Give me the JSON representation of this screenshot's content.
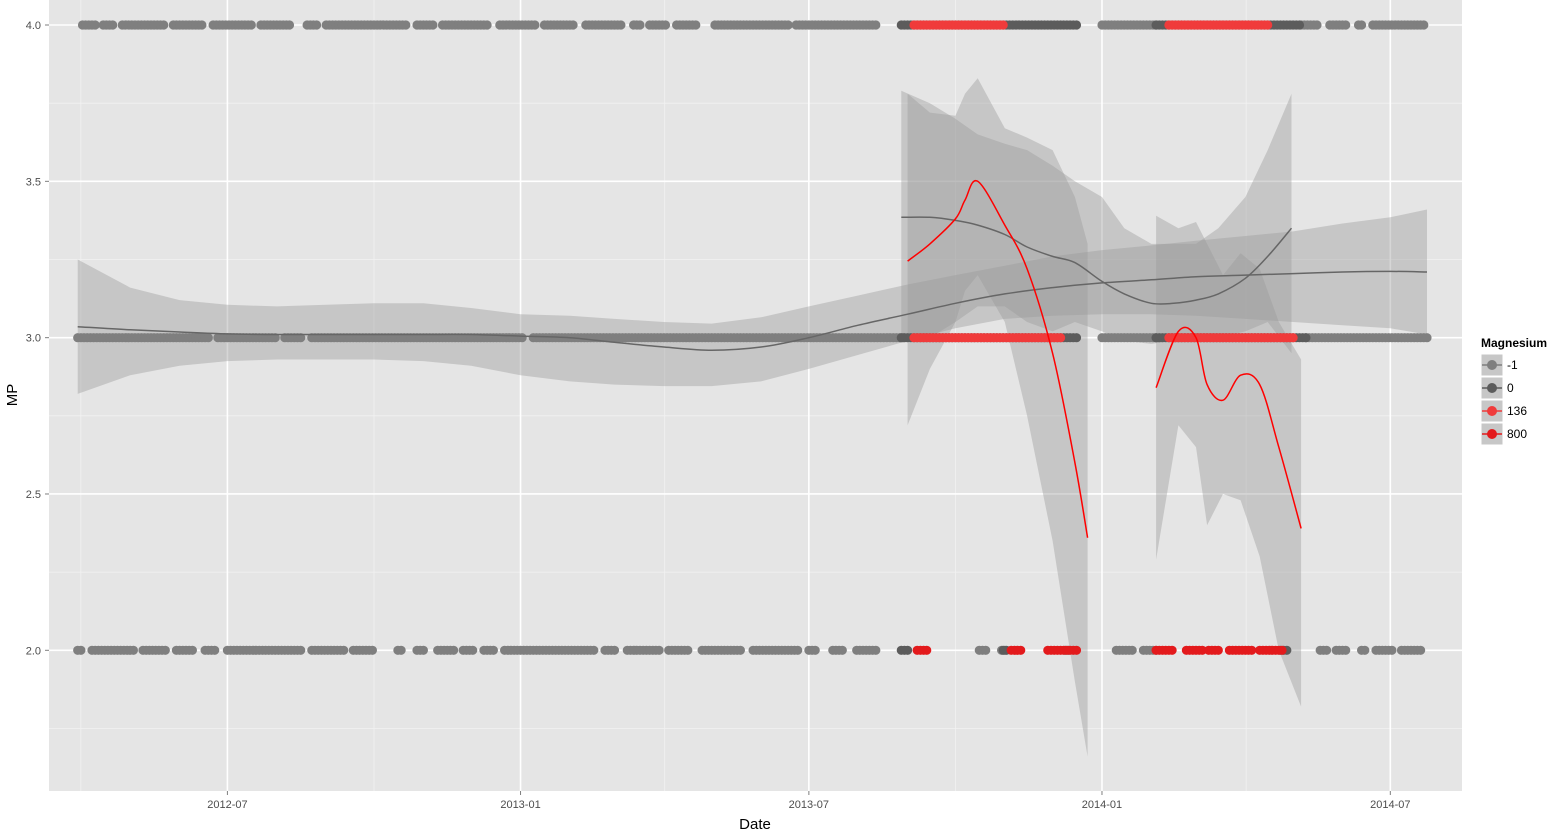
{
  "chart_data": {
    "type": "scatter",
    "title": "",
    "xlabel": "Date",
    "ylabel": "MP",
    "xlim": [
      "2012-03-11",
      "2014-08-15"
    ],
    "ylim": [
      1.55,
      4.08
    ],
    "x_ticks": [
      "2012-07-01",
      "2013-01-01",
      "2013-07-01",
      "2014-01-01",
      "2014-07-01"
    ],
    "x_tick_labels": [
      "2012-07",
      "2013-01",
      "2013-07",
      "2014-01",
      "2014-07"
    ],
    "y_ticks": [
      2.0,
      2.5,
      3.0,
      3.5,
      4.0
    ],
    "y_tick_labels": [
      "2.0",
      "2.5",
      "3.0",
      "3.5",
      "4.0"
    ],
    "grid": true,
    "legend": {
      "title": "Magnesium",
      "placement": "right",
      "entries": [
        {
          "label": "-1",
          "color": "#7f7f7f"
        },
        {
          "label": "0",
          "color": "#5c5c5c"
        },
        {
          "label": "136",
          "color": "#f03b3b"
        },
        {
          "label": "800",
          "color": "#e31a1c"
        }
      ]
    },
    "colors": {
      "panel": "#e5e5e5",
      "grid_major": "#ffffff",
      "grid_minor": "#f2f2f2",
      "band": "#999999"
    },
    "series": [
      {
        "name": "-1",
        "color": "#7f7f7f",
        "point_segments": [
          {
            "y": 4.0,
            "x": [
              [
                "2012-04-01",
                "2012-04-09"
              ],
              [
                "2012-04-14",
                "2012-04-20"
              ],
              [
                "2012-04-26",
                "2012-05-22"
              ],
              [
                "2012-05-28",
                "2012-06-16"
              ],
              [
                "2012-06-22",
                "2012-07-16"
              ],
              [
                "2012-07-22",
                "2012-08-10"
              ],
              [
                "2012-08-20",
                "2012-08-27"
              ],
              [
                "2012-09-01",
                "2012-10-22"
              ],
              [
                "2012-10-28",
                "2012-11-08"
              ],
              [
                "2012-11-13",
                "2012-12-12"
              ],
              [
                "2012-12-19",
                "2013-01-10"
              ],
              [
                "2013-01-16",
                "2013-02-04"
              ],
              [
                "2013-02-11",
                "2013-03-06"
              ],
              [
                "2013-03-13",
                "2013-03-17"
              ],
              [
                "2013-03-23",
                "2013-04-02"
              ],
              [
                "2013-04-09",
                "2013-04-22"
              ],
              [
                "2013-05-03",
                "2013-06-18"
              ],
              [
                "2013-06-23",
                "2013-08-12"
              ],
              [
                "2014-01-01",
                "2014-02-04"
              ],
              [
                "2014-05-06",
                "2014-05-16"
              ],
              [
                "2014-05-24",
                "2014-06-04"
              ],
              [
                "2014-06-11",
                "2014-06-14"
              ],
              [
                "2014-06-20",
                "2014-07-23"
              ]
            ]
          },
          {
            "y": 3.0,
            "x": [
              [
                "2012-03-29",
                "2012-06-19"
              ],
              [
                "2012-06-25",
                "2012-07-31"
              ],
              [
                "2012-08-06",
                "2012-08-16"
              ],
              [
                "2012-08-23",
                "2013-01-03"
              ],
              [
                "2013-01-09",
                "2013-08-30"
              ],
              [
                "2014-01-01",
                "2014-02-04"
              ],
              [
                "2014-05-09",
                "2014-07-24"
              ]
            ]
          },
          {
            "y": 2.0,
            "x": [
              [
                "2012-03-29",
                "2012-04-01"
              ],
              [
                "2012-04-07",
                "2012-05-03"
              ],
              [
                "2012-05-09",
                "2012-05-24"
              ],
              [
                "2012-05-30",
                "2012-06-10"
              ],
              [
                "2012-06-17",
                "2012-06-24"
              ],
              [
                "2012-07-01",
                "2012-08-16"
              ],
              [
                "2012-08-23",
                "2012-09-12"
              ],
              [
                "2012-09-18",
                "2012-10-01"
              ],
              [
                "2012-10-16",
                "2012-10-19"
              ],
              [
                "2012-10-28",
                "2012-11-01"
              ],
              [
                "2012-11-10",
                "2012-11-20"
              ],
              [
                "2012-11-26",
                "2012-12-03"
              ],
              [
                "2012-12-09",
                "2012-12-15"
              ],
              [
                "2012-12-22",
                "2013-02-16"
              ],
              [
                "2013-02-23",
                "2013-03-01"
              ],
              [
                "2013-03-09",
                "2013-03-29"
              ],
              [
                "2013-04-04",
                "2013-04-16"
              ],
              [
                "2013-04-25",
                "2013-05-20"
              ],
              [
                "2013-05-27",
                "2013-06-24"
              ],
              [
                "2013-07-01",
                "2013-07-05"
              ],
              [
                "2013-07-16",
                "2013-07-23"
              ],
              [
                "2013-07-31",
                "2013-08-12"
              ],
              [
                "2013-10-16",
                "2013-10-20"
              ],
              [
                "2013-10-30",
                "2013-11-01"
              ],
              [
                "2014-01-10",
                "2014-01-20"
              ],
              [
                "2014-01-27",
                "2014-02-04"
              ],
              [
                "2014-05-18",
                "2014-05-22"
              ],
              [
                "2014-05-28",
                "2014-06-04"
              ],
              [
                "2014-06-13",
                "2014-06-16"
              ],
              [
                "2014-06-22",
                "2014-07-02"
              ],
              [
                "2014-07-08",
                "2014-07-20"
              ]
            ]
          }
        ],
        "smooth": {
          "x": [
            "2012-03-29",
            "2012-05-01",
            "2012-06-01",
            "2012-07-01",
            "2012-08-01",
            "2012-09-01",
            "2012-10-01",
            "2012-11-01",
            "2012-12-01",
            "2013-01-01",
            "2013-02-01",
            "2013-03-01",
            "2013-04-01",
            "2013-05-01",
            "2013-06-01",
            "2013-07-01",
            "2013-08-01",
            "2013-09-01",
            "2013-10-01",
            "2013-11-01",
            "2013-12-01",
            "2014-01-01",
            "2014-02-01",
            "2014-03-01",
            "2014-04-01",
            "2014-05-01",
            "2014-06-01",
            "2014-07-01",
            "2014-07-24"
          ],
          "y": [
            3.035,
            3.025,
            3.018,
            3.012,
            3.01,
            3.01,
            3.01,
            3.01,
            3.01,
            3.005,
            3.0,
            2.985,
            2.97,
            2.96,
            2.97,
            3.0,
            3.04,
            3.075,
            3.11,
            3.14,
            3.16,
            3.175,
            3.185,
            3.195,
            3.2,
            3.205,
            3.21,
            3.212,
            3.21
          ],
          "lower": [
            2.82,
            2.88,
            2.91,
            2.925,
            2.93,
            2.93,
            2.93,
            2.925,
            2.91,
            2.88,
            2.86,
            2.85,
            2.845,
            2.845,
            2.86,
            2.9,
            2.945,
            2.99,
            3.03,
            3.06,
            3.07,
            3.075,
            3.075,
            3.07,
            3.06,
            3.05,
            3.04,
            3.03,
            3.01
          ],
          "upper": [
            3.25,
            3.16,
            3.12,
            3.105,
            3.1,
            3.105,
            3.11,
            3.11,
            3.095,
            3.075,
            3.07,
            3.06,
            3.05,
            3.045,
            3.065,
            3.1,
            3.135,
            3.17,
            3.2,
            3.23,
            3.26,
            3.28,
            3.295,
            3.31,
            3.325,
            3.34,
            3.365,
            3.385,
            3.41
          ]
        }
      },
      {
        "name": "0",
        "color": "#5c5c5c",
        "point_segments": [
          {
            "y": 4.0,
            "x": [
              [
                "2013-08-28",
                "2013-12-17"
              ],
              [
                "2014-02-04",
                "2014-05-06"
              ]
            ]
          },
          {
            "y": 3.0,
            "x": [
              [
                "2013-08-28",
                "2013-12-17"
              ],
              [
                "2014-02-04",
                "2014-05-09"
              ]
            ]
          },
          {
            "y": 2.0,
            "x": [
              [
                "2013-08-28",
                "2013-09-01"
              ],
              [
                "2013-10-31",
                "2013-11-03"
              ],
              [
                "2013-12-09",
                "2013-12-12"
              ],
              [
                "2014-04-23",
                "2014-04-27"
              ]
            ]
          }
        ],
        "smooth": {
          "x": [
            "2013-08-28",
            "2013-09-15",
            "2013-10-01",
            "2013-10-15",
            "2013-11-01",
            "2013-11-15",
            "2013-12-01",
            "2013-12-15",
            "2014-01-01",
            "2014-01-15",
            "2014-02-01",
            "2014-02-15",
            "2014-03-01",
            "2014-03-15",
            "2014-04-01",
            "2014-04-15",
            "2014-04-30"
          ],
          "y": [
            3.385,
            3.385,
            3.375,
            3.36,
            3.33,
            3.29,
            3.26,
            3.24,
            3.18,
            3.14,
            3.11,
            3.11,
            3.12,
            3.14,
            3.19,
            3.26,
            3.35
          ],
          "lower": [
            3.0,
            3.0,
            3.05,
            3.1,
            3.1,
            3.05,
            3.02,
            3.05,
            3.02,
            2.99,
            2.98,
            2.99,
            3.0,
            3.0,
            3.02,
            3.05,
            2.95
          ],
          "upper": [
            3.79,
            3.75,
            3.7,
            3.65,
            3.62,
            3.6,
            3.55,
            3.5,
            3.45,
            3.35,
            3.3,
            3.3,
            3.3,
            3.35,
            3.45,
            3.6,
            3.78
          ]
        }
      },
      {
        "name": "136",
        "color": "#f03b3b",
        "point_segments": [
          {
            "y": 4.0,
            "x": [
              [
                "2013-09-05",
                "2013-10-31"
              ],
              [
                "2014-02-12",
                "2014-04-15"
              ]
            ]
          },
          {
            "y": 3.0,
            "x": [
              [
                "2013-09-05",
                "2013-12-07"
              ],
              [
                "2014-02-12",
                "2014-05-02"
              ]
            ]
          }
        ],
        "smooth": {
          "x": [
            "2013-09-01",
            "2013-09-15",
            "2013-10-01",
            "2013-10-07",
            "2013-10-15",
            "2013-11-01",
            "2013-11-15",
            "2013-12-01",
            "2013-12-15",
            "2013-12-23"
          ],
          "y": [
            3.245,
            3.3,
            3.38,
            3.44,
            3.5,
            3.36,
            3.22,
            2.95,
            2.6,
            2.36
          ],
          "lower": [
            2.72,
            2.9,
            3.05,
            3.15,
            3.2,
            3.05,
            2.75,
            2.35,
            1.9,
            1.66
          ],
          "upper": [
            3.78,
            3.72,
            3.71,
            3.78,
            3.83,
            3.67,
            3.64,
            3.6,
            3.45,
            3.3
          ]
        }
      },
      {
        "name": "800",
        "color": "#e31a1c",
        "point_segments": [
          {
            "y": 2.0,
            "x": [
              [
                "2013-09-07",
                "2013-09-14"
              ],
              [
                "2013-11-05",
                "2013-11-11"
              ],
              [
                "2013-11-28",
                "2013-12-17"
              ],
              [
                "2014-02-04",
                "2014-02-15"
              ],
              [
                "2014-02-23",
                "2014-03-05"
              ],
              [
                "2014-03-09",
                "2014-03-16"
              ],
              [
                "2014-03-22",
                "2014-04-06"
              ],
              [
                "2014-04-10",
                "2014-04-25"
              ]
            ]
          }
        ],
        "smooth": {
          "x": [
            "2014-02-04",
            "2014-02-18",
            "2014-03-01",
            "2014-03-08",
            "2014-03-18",
            "2014-03-29",
            "2014-04-10",
            "2014-04-22",
            "2014-05-06"
          ],
          "y": [
            2.84,
            3.02,
            3.0,
            2.85,
            2.8,
            2.88,
            2.85,
            2.65,
            2.39
          ],
          "lower": [
            2.29,
            2.72,
            2.65,
            2.4,
            2.5,
            2.48,
            2.3,
            2.0,
            1.82
          ],
          "upper": [
            3.39,
            3.35,
            3.37,
            3.3,
            3.2,
            3.27,
            3.22,
            3.05,
            2.93
          ]
        }
      }
    ]
  }
}
